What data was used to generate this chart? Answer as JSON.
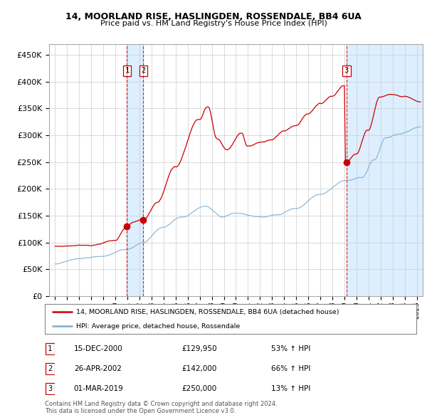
{
  "title": "14, MOORLAND RISE, HASLINGDEN, ROSSENDALE, BB4 6UA",
  "subtitle": "Price paid vs. HM Land Registry's House Price Index (HPI)",
  "legend_line1": "14, MOORLAND RISE, HASLINGDEN, ROSSENDALE, BB4 6UA (detached house)",
  "legend_line2": "HPI: Average price, detached house, Rossendale",
  "footer1": "Contains HM Land Registry data © Crown copyright and database right 2024.",
  "footer2": "This data is licensed under the Open Government Licence v3.0.",
  "transactions": [
    {
      "num": 1,
      "date": "15-DEC-2000",
      "price": 129950,
      "pct": "53%",
      "dir": "↑",
      "ref": "HPI",
      "x_year": 2000.96
    },
    {
      "num": 2,
      "date": "26-APR-2002",
      "price": 142000,
      "pct": "66%",
      "dir": "↑",
      "ref": "HPI",
      "x_year": 2002.32
    },
    {
      "num": 3,
      "date": "01-MAR-2019",
      "price": 250000,
      "pct": "13%",
      "dir": "↑",
      "ref": "HPI",
      "x_year": 2019.17
    }
  ],
  "hpi_color": "#7bafd4",
  "price_color": "#cc0000",
  "marker_color": "#cc0000",
  "vline_color": "#cc0000",
  "shade_color": "#ddeeff",
  "ylim": [
    0,
    470000
  ],
  "yticks": [
    0,
    50000,
    100000,
    150000,
    200000,
    250000,
    300000,
    350000,
    400000,
    450000
  ],
  "xlim_start": 1994.5,
  "xlim_end": 2025.5
}
